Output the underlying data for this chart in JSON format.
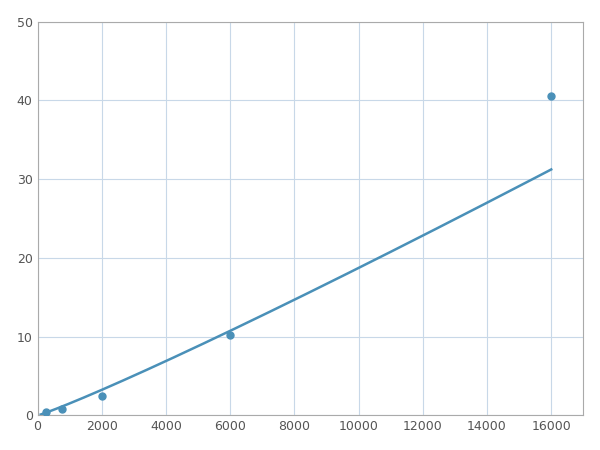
{
  "x": [
    250,
    750,
    2000,
    6000,
    16000
  ],
  "y": [
    0.5,
    0.8,
    2.5,
    10.2,
    40.5
  ],
  "line_color": "#4a90b8",
  "marker_color": "#4a90b8",
  "marker_size": 5,
  "line_width": 1.8,
  "xlim": [
    0,
    17000
  ],
  "ylim": [
    0,
    50
  ],
  "xticks": [
    0,
    2000,
    4000,
    6000,
    8000,
    10000,
    12000,
    14000,
    16000
  ],
  "yticks": [
    0,
    10,
    20,
    30,
    40,
    50
  ],
  "grid_color": "#c8d8e8",
  "background_color": "#ffffff",
  "spine_color": "#aaaaaa",
  "tick_label_color": "#555555",
  "tick_label_size": 9
}
